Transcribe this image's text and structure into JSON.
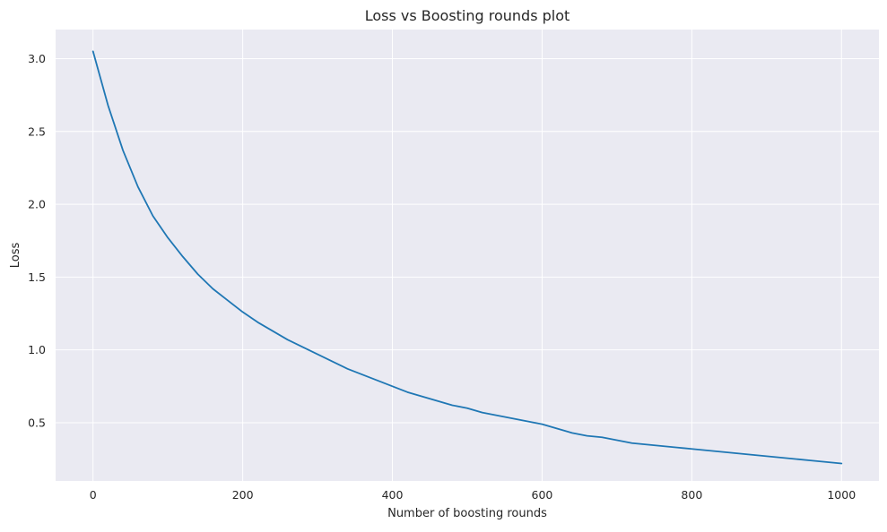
{
  "chart_data": {
    "type": "line",
    "title": "Loss vs Boosting rounds plot",
    "xlabel": "Number of boosting rounds",
    "ylabel": "Loss",
    "xlim": [
      -50,
      1050
    ],
    "ylim": [
      0.1,
      3.2
    ],
    "xticks": [
      0,
      200,
      400,
      600,
      800,
      1000
    ],
    "yticks": [
      0.5,
      1.0,
      1.5,
      2.0,
      2.5,
      3.0
    ],
    "xtick_labels": [
      "0",
      "200",
      "400",
      "600",
      "800",
      "1000"
    ],
    "ytick_labels": [
      "0.5",
      "1.0",
      "1.5",
      "2.0",
      "2.5",
      "3.0"
    ],
    "grid": true,
    "background": "#eaeaf2",
    "grid_color": "#ffffff",
    "series": [
      {
        "color": "#1f77b4",
        "x": [
          0,
          20,
          40,
          60,
          80,
          100,
          120,
          140,
          160,
          180,
          200,
          220,
          240,
          260,
          280,
          300,
          320,
          340,
          360,
          380,
          400,
          420,
          440,
          460,
          480,
          500,
          520,
          540,
          560,
          580,
          600,
          620,
          640,
          660,
          680,
          700,
          720,
          740,
          760,
          780,
          800,
          820,
          840,
          860,
          880,
          900,
          920,
          940,
          960,
          980,
          1000
        ],
        "y": [
          3.05,
          2.68,
          2.37,
          2.12,
          1.92,
          1.77,
          1.64,
          1.52,
          1.42,
          1.34,
          1.26,
          1.19,
          1.13,
          1.07,
          1.02,
          0.97,
          0.92,
          0.87,
          0.83,
          0.79,
          0.75,
          0.71,
          0.68,
          0.65,
          0.62,
          0.6,
          0.57,
          0.55,
          0.53,
          0.51,
          0.49,
          0.46,
          0.43,
          0.41,
          0.4,
          0.38,
          0.36,
          0.35,
          0.34,
          0.33,
          0.32,
          0.31,
          0.3,
          0.29,
          0.28,
          0.27,
          0.26,
          0.25,
          0.24,
          0.23,
          0.22
        ]
      }
    ]
  }
}
